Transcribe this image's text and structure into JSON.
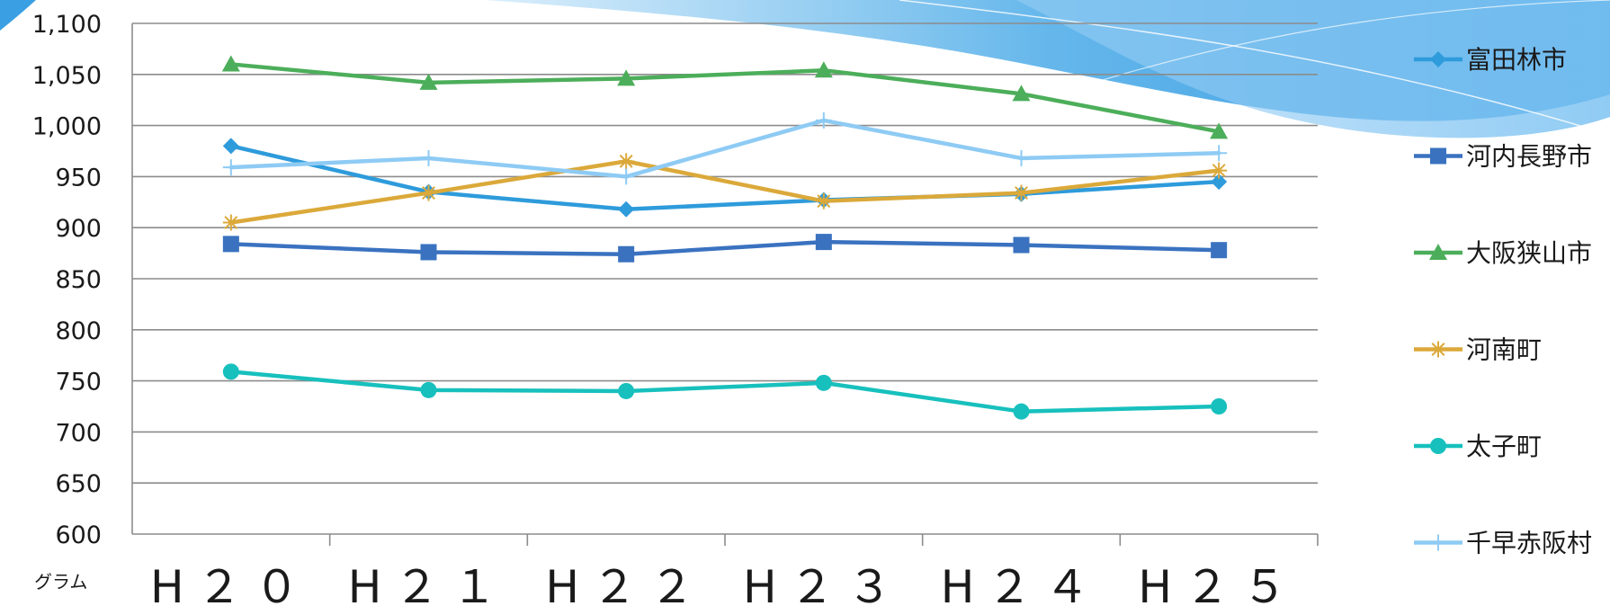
{
  "chart_data": {
    "type": "line",
    "unit_label": "グラム",
    "categories": [
      "H２０",
      "H２１",
      "H２２",
      "H２３",
      "H２４",
      "H２５"
    ],
    "ylim": [
      600,
      1100
    ],
    "yticks": [
      600,
      650,
      700,
      750,
      800,
      850,
      900,
      950,
      1000,
      1050,
      1100
    ],
    "ytick_labels": [
      "600",
      "650",
      "700",
      "750",
      "800",
      "850",
      "900",
      "950",
      "1,000",
      "1,050",
      "1,100"
    ],
    "grid": true,
    "legend_position": "right",
    "series": [
      {
        "name": "富田林市",
        "color": "#2e9bdb",
        "marker": "diamond",
        "values": [
          980,
          935,
          918,
          927,
          933,
          945
        ]
      },
      {
        "name": "河内長野市",
        "color": "#3a72c0",
        "marker": "square",
        "values": [
          884,
          876,
          874,
          886,
          883,
          878
        ]
      },
      {
        "name": "大阪狭山市",
        "color": "#4cae5a",
        "marker": "triangle",
        "values": [
          1060,
          1042,
          1046,
          1054,
          1031,
          994
        ]
      },
      {
        "name": "河南町",
        "color": "#dba93a",
        "marker": "star",
        "values": [
          905,
          934,
          965,
          926,
          934,
          956
        ]
      },
      {
        "name": "太子町",
        "color": "#17c0bd",
        "marker": "circle",
        "values": [
          759,
          741,
          740,
          748,
          720,
          725
        ]
      },
      {
        "name": "千早赤阪村",
        "color": "#8ecbf4",
        "marker": "plus",
        "values": [
          959,
          968,
          950,
          1005,
          968,
          973
        ]
      }
    ]
  }
}
